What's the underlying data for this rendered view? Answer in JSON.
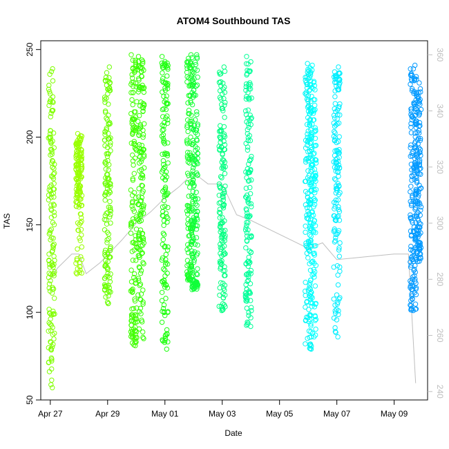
{
  "chart_data": {
    "type": "scatter",
    "title": "ATOM4 Southbound TAS",
    "xlabel": "Date",
    "ylabel": "TAS",
    "xlim": [
      "2016-04-26T16:00",
      "2016-05-10T04:00"
    ],
    "ylim": [
      50,
      255
    ],
    "y2lim": [
      237,
      365
    ],
    "x_ticks": [
      "Apr 27",
      "Apr 29",
      "May 01",
      "May 03",
      "May 05",
      "May 07",
      "May 09"
    ],
    "x_tick_dates": [
      "2016-04-27",
      "2016-04-29",
      "2016-05-01",
      "2016-05-03",
      "2016-05-05",
      "2016-05-07",
      "2016-05-09"
    ],
    "y_ticks": [
      50,
      100,
      150,
      200,
      250
    ],
    "y2_ticks": [
      240,
      260,
      280,
      300,
      320,
      340,
      360
    ],
    "grid": false,
    "legend": "none",
    "tas_series": [
      {
        "date": "2016-04-27T01:00",
        "min": 57,
        "max": 239,
        "dense_low": 110,
        "dense_high": 238,
        "color": "#80ff00"
      },
      {
        "date": "2016-04-28T00:00",
        "min": 122,
        "max": 202,
        "dense_low": 160,
        "dense_high": 201,
        "color": "#99ff00"
      },
      {
        "date": "2016-04-29T00:00",
        "min": 105,
        "max": 240,
        "dense_low": 128,
        "dense_high": 238,
        "color": "#6aff00"
      },
      {
        "date": "2016-04-29T22:00",
        "min": 81,
        "max": 247,
        "dense_low": 96,
        "dense_high": 246,
        "color": "#40ff00"
      },
      {
        "date": "2016-04-30T04:00",
        "min": 85,
        "max": 246,
        "dense_low": 132,
        "dense_high": 245,
        "color": "#33ff00"
      },
      {
        "date": "2016-05-01T00:00",
        "min": 79,
        "max": 246,
        "dense_low": 122,
        "dense_high": 245,
        "color": "#1fff10"
      },
      {
        "date": "2016-05-01T21:00",
        "min": 118,
        "max": 247,
        "dense_low": 128,
        "dense_high": 246,
        "color": "#1aff2a"
      },
      {
        "date": "2016-05-02T01:00",
        "min": 113,
        "max": 247,
        "dense_low": 118,
        "dense_high": 246,
        "color": "#10ff3a"
      },
      {
        "date": "2016-05-03T00:00",
        "min": 101,
        "max": 240,
        "dense_low": 125,
        "dense_high": 239,
        "color": "#00ff80"
      },
      {
        "date": "2016-05-03T22:00",
        "min": 92,
        "max": 246,
        "dense_low": 118,
        "dense_high": 245,
        "color": "#00ff99"
      },
      {
        "date": "2016-05-06T00:00",
        "min": 79,
        "max": 242,
        "dense_low": 130,
        "dense_high": 241,
        "color": "#00f6f6"
      },
      {
        "date": "2016-05-06T04:00",
        "min": 86,
        "max": 241,
        "dense_low": 124,
        "dense_high": 240,
        "color": "#00ffff"
      },
      {
        "date": "2016-05-07T00:00",
        "min": 86,
        "max": 240,
        "dense_low": 135,
        "dense_high": 239,
        "color": "#00eeff"
      },
      {
        "date": "2016-05-09T16:00",
        "min": 101,
        "max": 241,
        "dense_low": 128,
        "dense_high": 240,
        "color": "#0099ff"
      },
      {
        "date": "2016-05-09T20:00",
        "min": 129,
        "max": 233,
        "dense_low": 140,
        "dense_high": 232,
        "color": "#0099ff"
      }
    ],
    "secondary_line": {
      "axis": "right",
      "color": "#bdbdbd",
      "points": [
        {
          "date": "2016-04-27T00:00",
          "value": 280
        },
        {
          "date": "2016-04-27T06:00",
          "value": 284
        },
        {
          "date": "2016-04-27T18:00",
          "value": 289
        },
        {
          "date": "2016-04-28T00:00",
          "value": 289
        },
        {
          "date": "2016-04-28T06:00",
          "value": 282
        },
        {
          "date": "2016-04-28T18:00",
          "value": 286
        },
        {
          "date": "2016-04-29T12:00",
          "value": 294
        },
        {
          "date": "2016-04-30T00:00",
          "value": 300
        },
        {
          "date": "2016-04-30T12:00",
          "value": 304
        },
        {
          "date": "2016-05-01T00:00",
          "value": 309
        },
        {
          "date": "2016-05-01T12:00",
          "value": 313
        },
        {
          "date": "2016-05-02T00:00",
          "value": 318
        },
        {
          "date": "2016-05-02T06:00",
          "value": 316
        },
        {
          "date": "2016-05-02T12:00",
          "value": 314
        },
        {
          "date": "2016-05-03T00:00",
          "value": 314
        },
        {
          "date": "2016-05-03T12:00",
          "value": 303
        },
        {
          "date": "2016-05-04T00:00",
          "value": 301
        },
        {
          "date": "2016-05-05T00:00",
          "value": 296
        },
        {
          "date": "2016-05-06T00:00",
          "value": 291
        },
        {
          "date": "2016-05-06T12:00",
          "value": 293
        },
        {
          "date": "2016-05-07T00:00",
          "value": 287
        },
        {
          "date": "2016-05-08T00:00",
          "value": 288
        },
        {
          "date": "2016-05-09T00:00",
          "value": 289
        },
        {
          "date": "2016-05-09T12:00",
          "value": 289
        },
        {
          "date": "2016-05-09T18:00",
          "value": 243
        }
      ]
    }
  }
}
